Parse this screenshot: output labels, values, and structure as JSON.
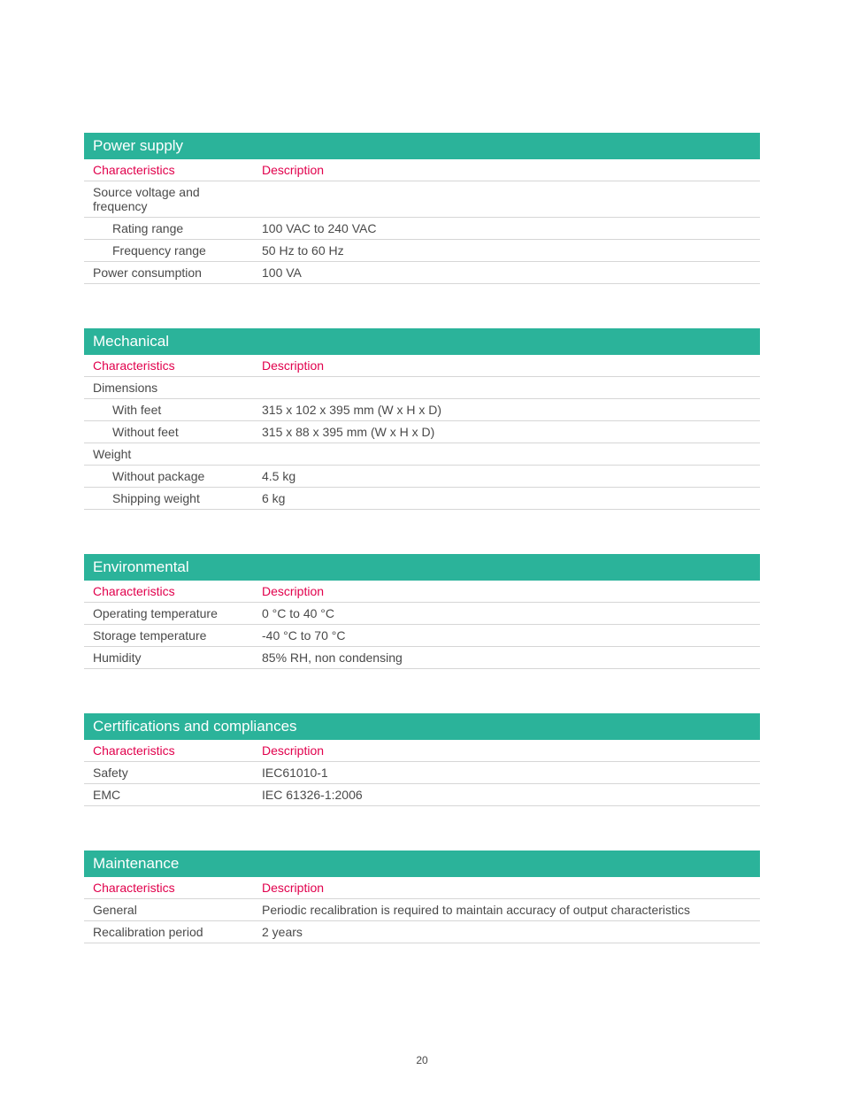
{
  "page_number": "20",
  "colors": {
    "header_bg": "#2bb39a",
    "header_text": "#ffffff",
    "column_header": "#e1004c",
    "body_text": "#4a4a4a",
    "row_border": "#d6d6d6",
    "page_bg": "#ffffff"
  },
  "typography": {
    "header_fontsize": 17,
    "body_fontsize": 14,
    "page_number_fontsize": 12
  },
  "col_header_char": "Characteristics",
  "col_header_desc": "Description",
  "sections": [
    {
      "title": "Power supply",
      "rows": [
        {
          "char": "Source voltage and frequency",
          "desc": "",
          "indent": false
        },
        {
          "char": "Rating range",
          "desc": "100 VAC to 240 VAC",
          "indent": true
        },
        {
          "char": "Frequency range",
          "desc": "50 Hz to 60 Hz",
          "indent": true
        },
        {
          "char": "Power consumption",
          "desc": "100 VA",
          "indent": false
        }
      ]
    },
    {
      "title": "Mechanical",
      "rows": [
        {
          "char": "Dimensions",
          "desc": "",
          "indent": false
        },
        {
          "char": "With feet",
          "desc": "315 x 102 x 395 mm (W x H x D)",
          "indent": true
        },
        {
          "char": "Without feet",
          "desc": "315 x 88 x 395 mm (W x H x D)",
          "indent": true
        },
        {
          "char": "Weight",
          "desc": "",
          "indent": false
        },
        {
          "char": "Without package",
          "desc": "4.5 kg",
          "indent": true
        },
        {
          "char": "Shipping weight",
          "desc": "6 kg",
          "indent": true
        }
      ]
    },
    {
      "title": "Environmental",
      "rows": [
        {
          "char": "Operating temperature",
          "desc": "0 °C to 40 °C",
          "indent": false
        },
        {
          "char": "Storage temperature",
          "desc": "-40 °C to 70 °C",
          "indent": false
        },
        {
          "char": "Humidity",
          "desc": "85% RH, non condensing",
          "indent": false
        }
      ]
    },
    {
      "title": "Certifications and compliances",
      "rows": [
        {
          "char": "Safety",
          "desc": "IEC61010-1",
          "indent": false
        },
        {
          "char": "EMC",
          "desc": "IEC 61326-1:2006",
          "indent": false
        }
      ]
    },
    {
      "title": "Maintenance",
      "rows": [
        {
          "char": "General",
          "desc": "Periodic recalibration is required to maintain accuracy of output characteristics",
          "indent": false
        },
        {
          "char": "Recalibration period",
          "desc": "2 years",
          "indent": false
        }
      ]
    }
  ]
}
